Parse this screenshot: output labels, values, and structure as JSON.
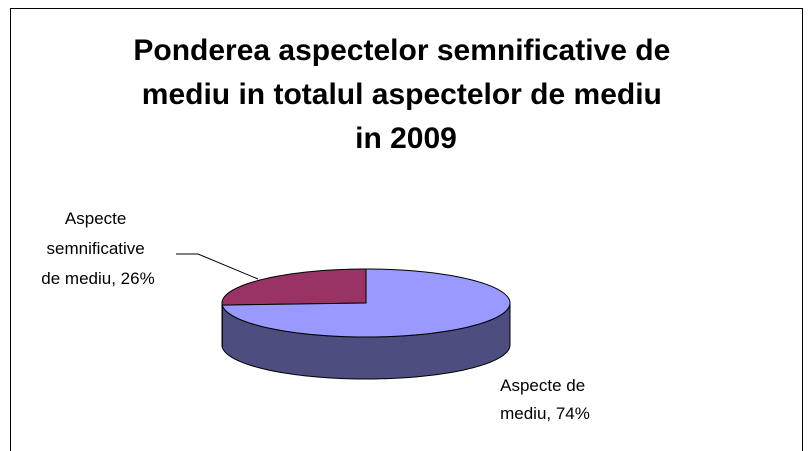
{
  "chart_data": {
    "type": "pie",
    "title": "Ponderea aspectelor semnificative de mediu in totalul aspectelor de mediu in 2009",
    "values": [
      26,
      74
    ],
    "value_labels": [
      "Aspecte semnificative de mediu, 26%",
      "Aspecte de mediu, 74%"
    ],
    "colors": [
      "#993366",
      "#9999ff"
    ],
    "side_colors": [
      "#4d1933",
      "#4d4d80"
    ]
  }
}
